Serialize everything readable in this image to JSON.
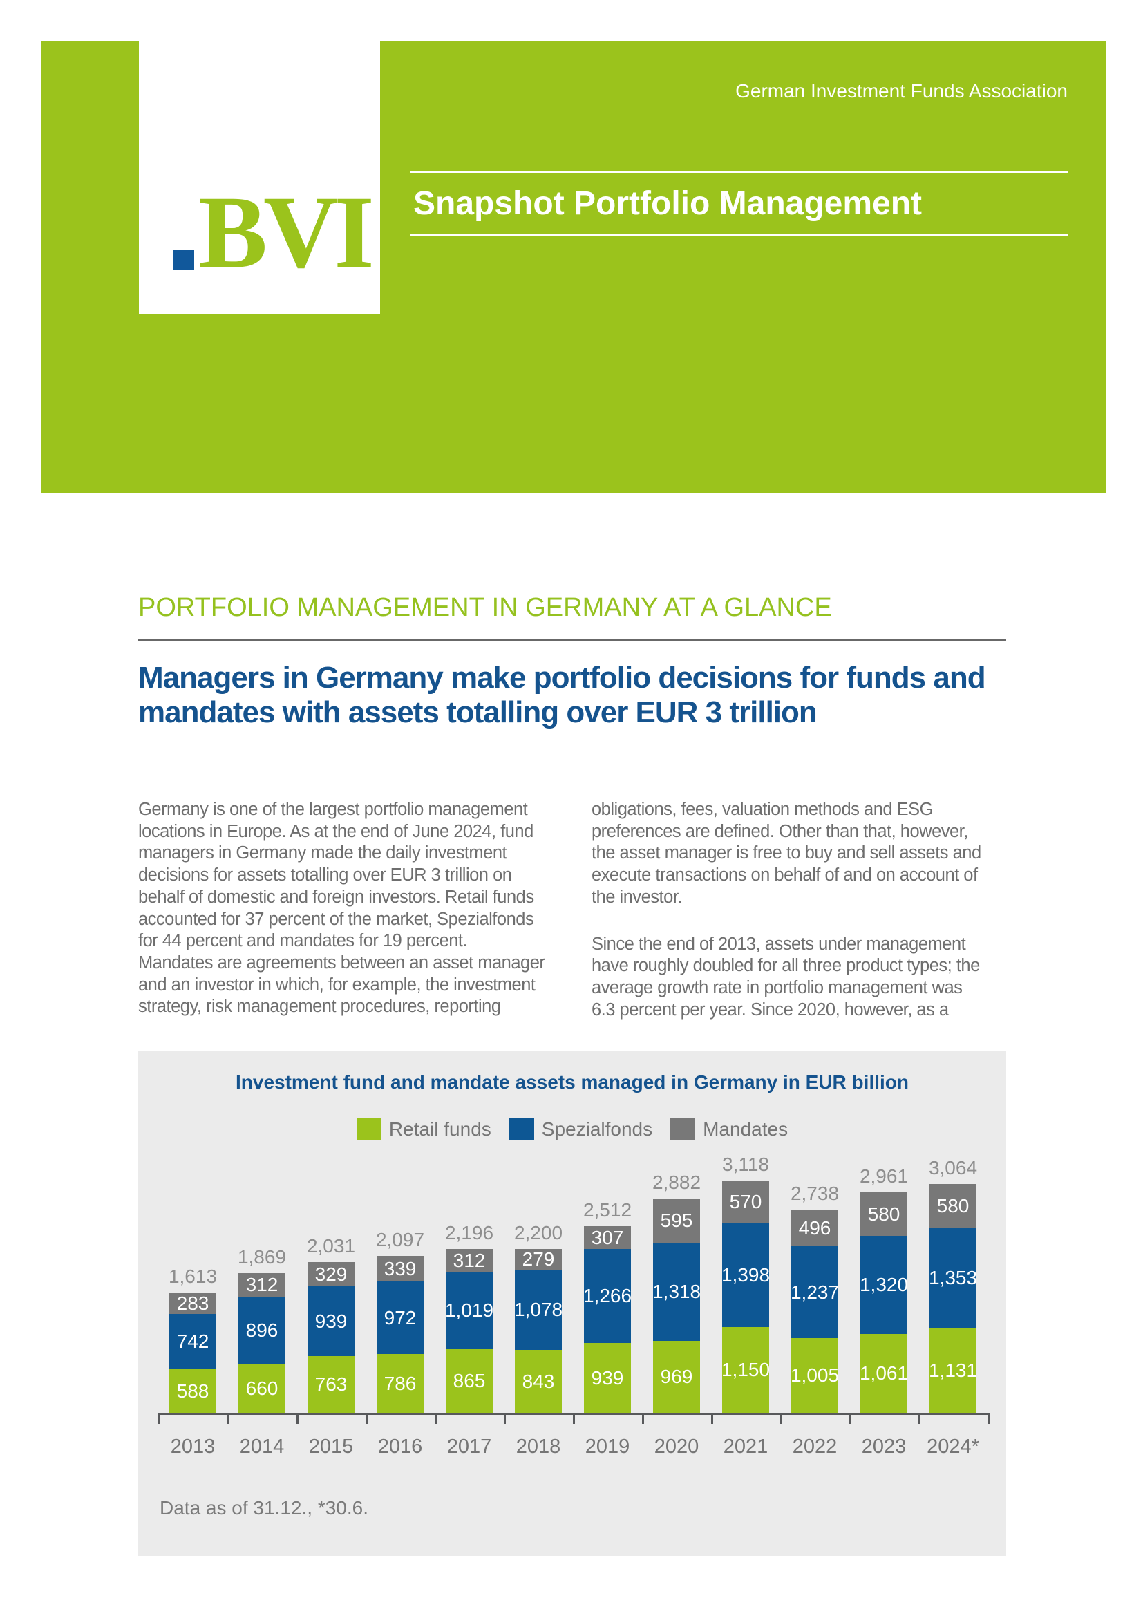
{
  "header": {
    "association_label": "German Investment Funds Association",
    "banner_title": "Snapshot Portfolio Management",
    "logo": {
      "text": "BVI",
      "dot_color": "#11589b",
      "text_color": "#9bc31c"
    },
    "background_color": "#9bc31c"
  },
  "article": {
    "kicker": "PORTFOLIO MANAGEMENT IN GERMANY AT A GLANCE",
    "headline_lines": [
      "Managers in Germany make portfolio decisions for funds and",
      "mandates with assets totalling over EUR 3 trillion"
    ],
    "columns": {
      "left_lines": [
        "Germany is one of the largest portfolio management",
        "locations in Europe. As at the end of June 2024, fund",
        "managers in Germany made the daily investment",
        "decisions for assets totalling over EUR 3 trillion on",
        "behalf of domestic and foreign investors. Retail funds",
        "accounted for 37 percent of the market, Spezialfonds",
        "for 44 percent and mandates for 19 percent.",
        "Mandates are agreements between an asset manager",
        "and an investor in which, for example, the investment",
        "strategy, risk management procedures, reporting"
      ],
      "right_paragraphs": [
        [
          "obligations, fees, valuation methods and ESG",
          "preferences are defined. Other than that, however,",
          "the asset manager is free to buy and sell assets and",
          "execute transactions on behalf of and on account of",
          "the investor."
        ],
        [
          "Since the end of 2013, assets under management",
          "have roughly doubled for all three product types; the",
          "average growth rate in portfolio management was",
          "6.3 percent per year. Since 2020, however, as a"
        ]
      ]
    }
  },
  "chart_data": {
    "type": "bar",
    "stacked": true,
    "title": "Investment fund and mandate assets managed in Germany in EUR billion",
    "note": "Data as of 31.12., *30.6.",
    "legend_position": "top",
    "gridlines": false,
    "categories": [
      "2013",
      "2014",
      "2015",
      "2016",
      "2017",
      "2018",
      "2019",
      "2020",
      "2021",
      "2022",
      "2023",
      "2024*"
    ],
    "series": [
      {
        "name": "Retail funds",
        "color": "#9bc31c",
        "values": [
          588,
          660,
          763,
          786,
          865,
          843,
          939,
          969,
          1150,
          1005,
          1061,
          1131
        ]
      },
      {
        "name": "Spezialfonds",
        "color": "#0d5794",
        "values": [
          742,
          896,
          939,
          972,
          1019,
          1078,
          1266,
          1318,
          1398,
          1237,
          1320,
          1353
        ]
      },
      {
        "name": "Mandates",
        "color": "#787878",
        "values": [
          283,
          312,
          329,
          339,
          312,
          279,
          307,
          595,
          570,
          496,
          580,
          580
        ]
      }
    ],
    "totals": [
      1613,
      1869,
      2031,
      2097,
      2196,
      2200,
      2512,
      2882,
      3118,
      2738,
      2961,
      3064
    ],
    "ylim": [
      0,
      3400
    ]
  },
  "colors": {
    "brand_green": "#9bc31c",
    "brand_blue": "#0d5794",
    "heading_blue": "#15538e",
    "mandates_gray": "#787878",
    "panel_background": "#ebebeb",
    "axis_gray": "#58595b"
  }
}
